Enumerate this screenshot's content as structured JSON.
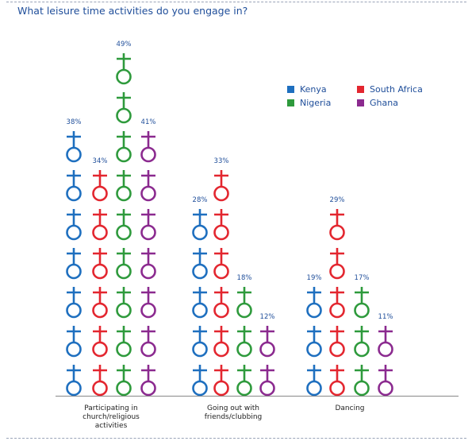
{
  "chart_data": {
    "type": "bar",
    "title": "What leisure time activities do you engage in?",
    "categories": [
      [
        "Participating in",
        "church/religious",
        "activities"
      ],
      [
        "Going out with",
        "friends/clubbing"
      ],
      [
        "Dancing"
      ]
    ],
    "series": [
      {
        "name": "Kenya",
        "color": "#1e6fbf",
        "values": [
          38,
          28,
          19
        ],
        "labels": [
          "38%",
          "28%",
          "19%"
        ]
      },
      {
        "name": "South Africa",
        "color": "#e3262f",
        "values": [
          34,
          33,
          29
        ],
        "labels": [
          "34%",
          "33%",
          "29%"
        ]
      },
      {
        "name": "Nigeria",
        "color": "#2e9a3c",
        "values": [
          49,
          18,
          17
        ],
        "labels": [
          "49%",
          "18%",
          "17%"
        ]
      },
      {
        "name": "Ghana",
        "color": "#8b2a8f",
        "values": [
          41,
          12,
          11
        ],
        "labels": [
          "41%",
          "12%",
          "11%"
        ]
      }
    ],
    "legend_position": "top-right",
    "icon": "female-symbol-icon",
    "units_per_icon": 5.5
  }
}
